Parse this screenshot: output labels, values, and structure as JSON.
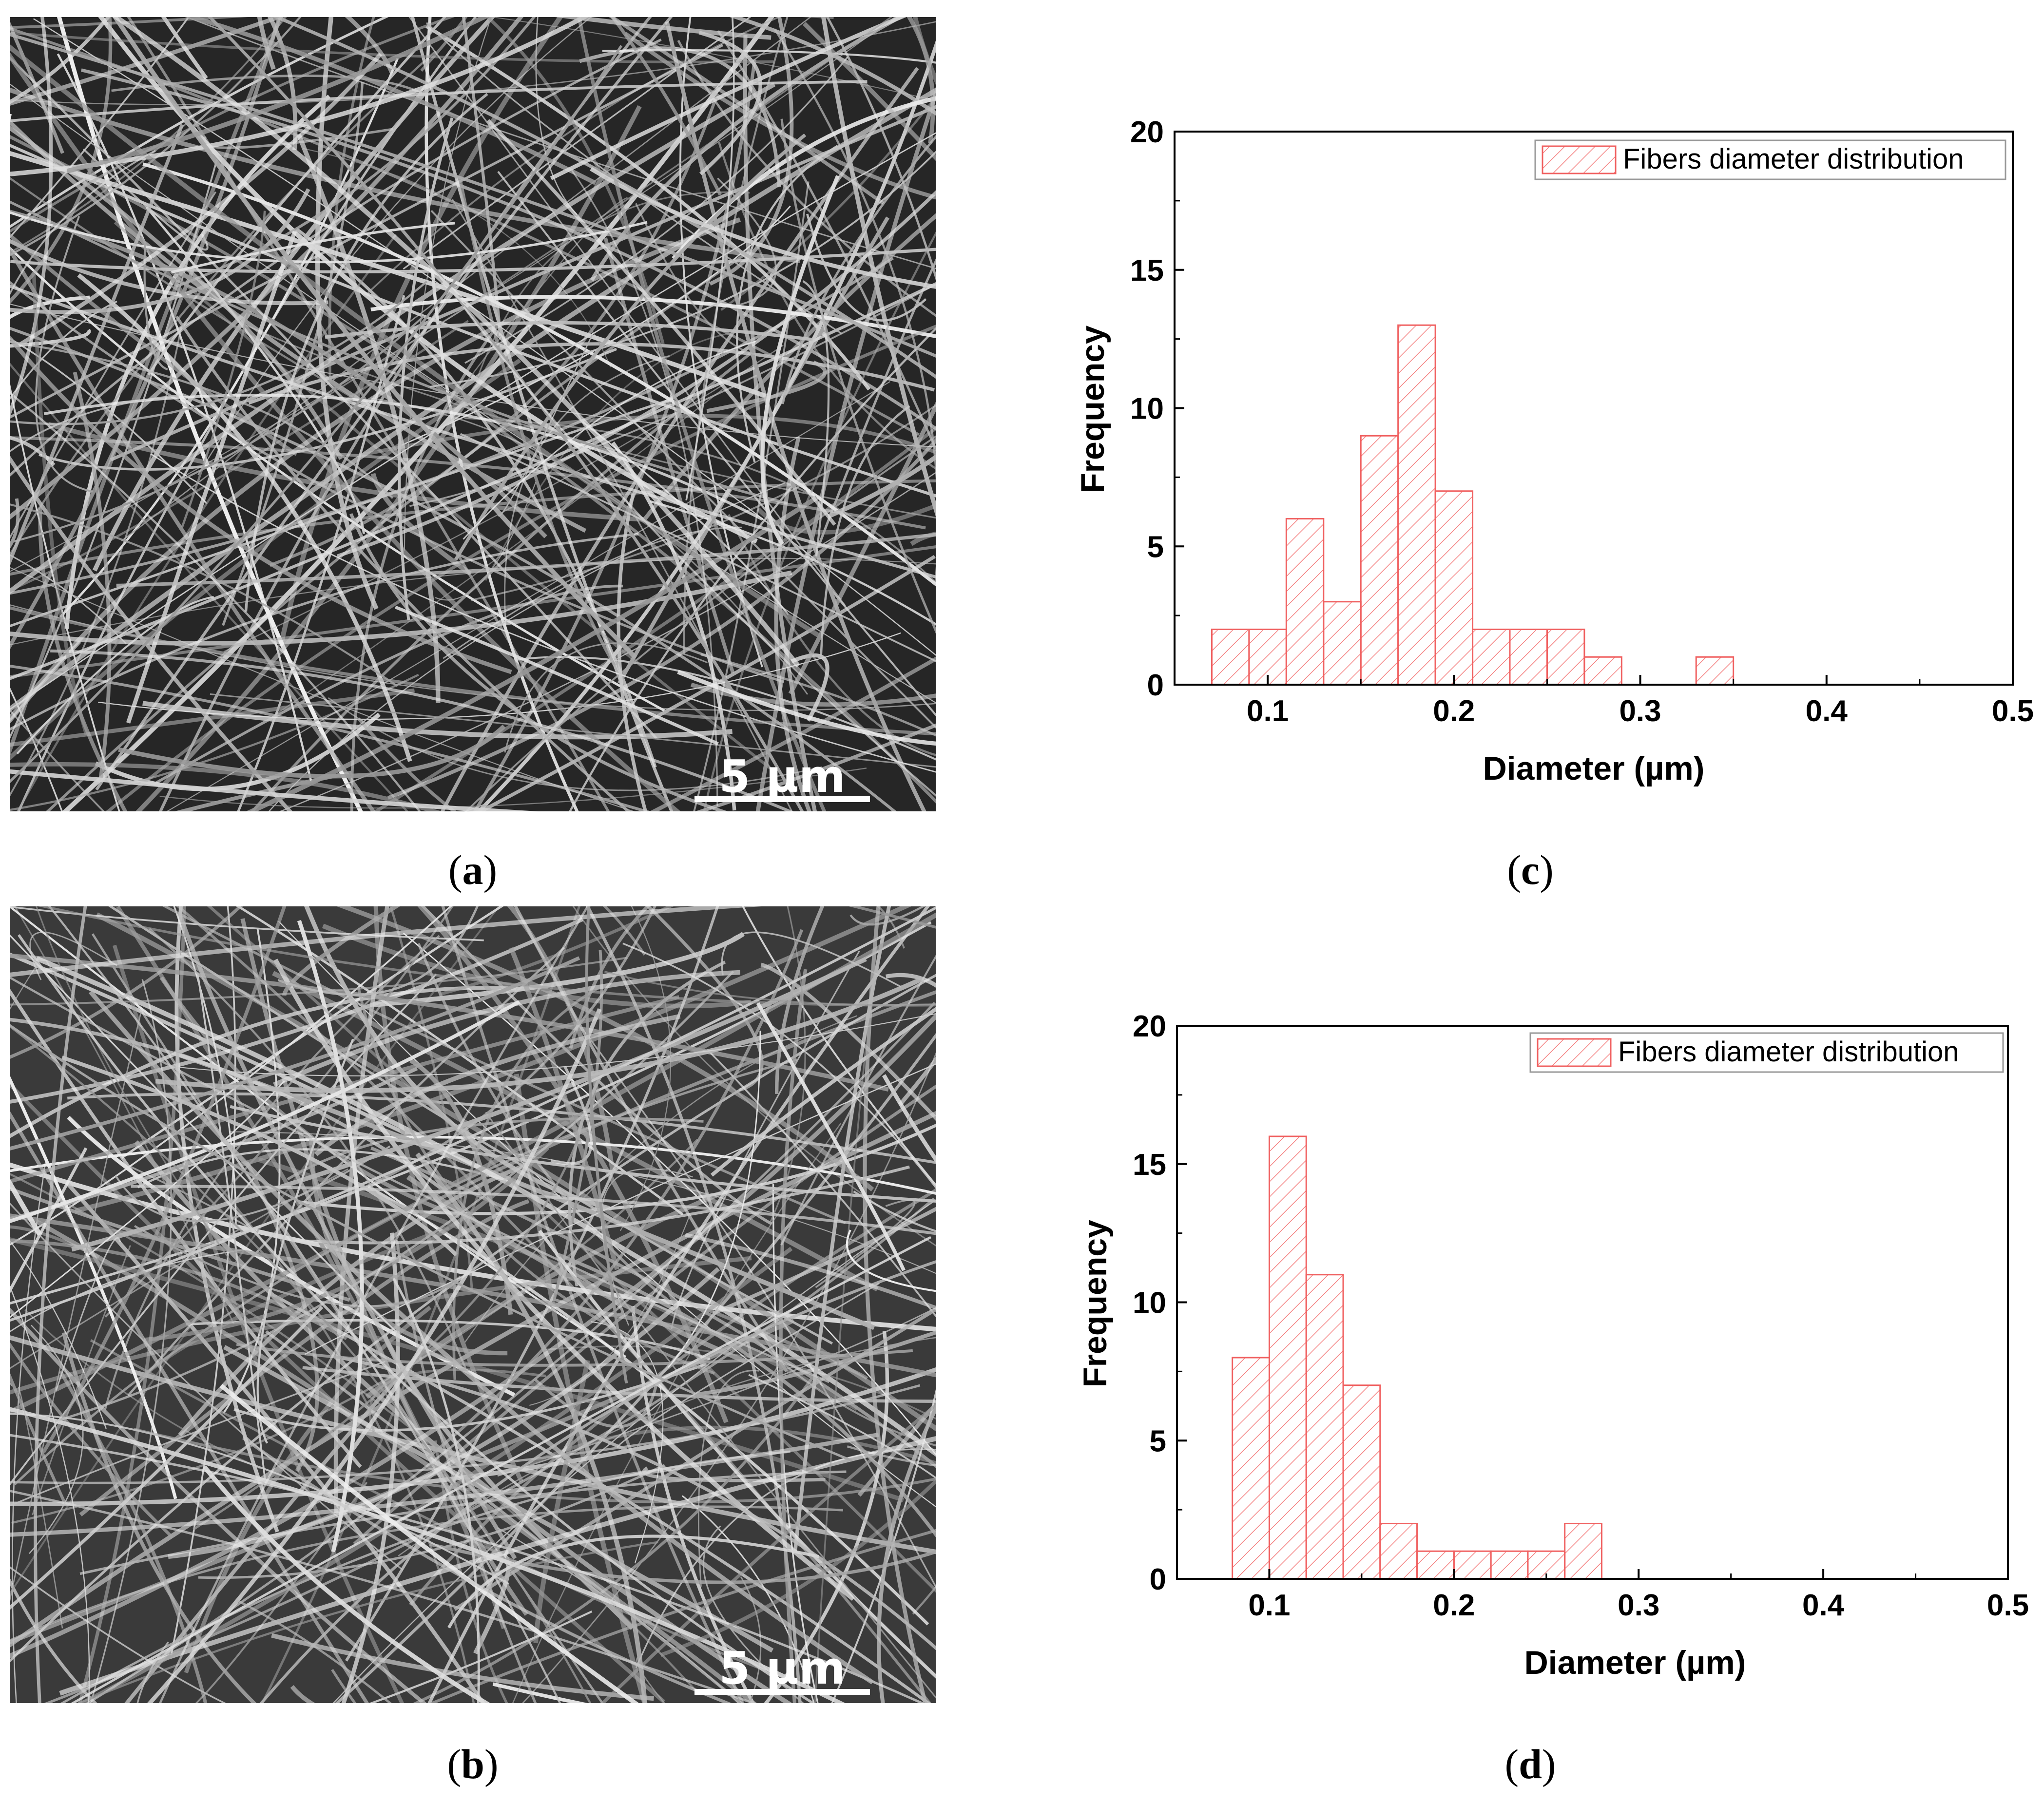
{
  "panels": {
    "a": {
      "label": "a",
      "scale_bar": "5 µm"
    },
    "b": {
      "label": "b",
      "scale_bar": "5 µm"
    },
    "c": {
      "label": "c"
    },
    "d": {
      "label": "d"
    }
  },
  "colors": {
    "bar_stroke": "#f06060",
    "hatch": "#f48080",
    "axis": "#000000"
  },
  "chart_data": [
    {
      "panel": "c",
      "type": "bar",
      "title": "",
      "xlabel": "Diameter (µm)",
      "ylabel": "Frequency",
      "xlim": [
        0.05,
        0.5
      ],
      "ylim": [
        0,
        20
      ],
      "xticks": [
        "0.1",
        "0.2",
        "0.3",
        "0.4",
        "0.5"
      ],
      "yticks": [
        "0",
        "5",
        "10",
        "15",
        "20"
      ],
      "xtick_values": [
        0.1,
        0.2,
        0.3,
        0.4,
        0.5
      ],
      "ytick_values": [
        0,
        5,
        10,
        15,
        20
      ],
      "legend": {
        "label": "Fibers diameter distribution",
        "position": "top-right"
      },
      "bin_width": 0.02,
      "bins": [
        {
          "start": 0.07,
          "value": 2
        },
        {
          "start": 0.09,
          "value": 2
        },
        {
          "start": 0.11,
          "value": 6
        },
        {
          "start": 0.13,
          "value": 3
        },
        {
          "start": 0.15,
          "value": 9
        },
        {
          "start": 0.17,
          "value": 13
        },
        {
          "start": 0.19,
          "value": 7
        },
        {
          "start": 0.21,
          "value": 2
        },
        {
          "start": 0.23,
          "value": 2
        },
        {
          "start": 0.25,
          "value": 2
        },
        {
          "start": 0.27,
          "value": 1
        },
        {
          "start": 0.33,
          "value": 1
        }
      ]
    },
    {
      "panel": "d",
      "type": "bar",
      "title": "",
      "xlabel": "Diameter (µm)",
      "ylabel": "Frequency",
      "xlim": [
        0.05,
        0.5
      ],
      "ylim": [
        0,
        20
      ],
      "xticks": [
        "0.1",
        "0.2",
        "0.3",
        "0.4",
        "0.5"
      ],
      "yticks": [
        "0",
        "5",
        "10",
        "15",
        "20"
      ],
      "xtick_values": [
        0.1,
        0.2,
        0.3,
        0.4,
        0.5
      ],
      "ytick_values": [
        0,
        5,
        10,
        15,
        20
      ],
      "legend": {
        "label": "Fibers diameter distribution",
        "position": "top-right"
      },
      "bin_width": 0.02,
      "bins": [
        {
          "start": 0.08,
          "value": 8
        },
        {
          "start": 0.1,
          "value": 16
        },
        {
          "start": 0.12,
          "value": 11
        },
        {
          "start": 0.14,
          "value": 7
        },
        {
          "start": 0.16,
          "value": 2
        },
        {
          "start": 0.18,
          "value": 1
        },
        {
          "start": 0.2,
          "value": 1
        },
        {
          "start": 0.22,
          "value": 1
        },
        {
          "start": 0.24,
          "value": 1
        },
        {
          "start": 0.26,
          "value": 2
        }
      ]
    }
  ]
}
